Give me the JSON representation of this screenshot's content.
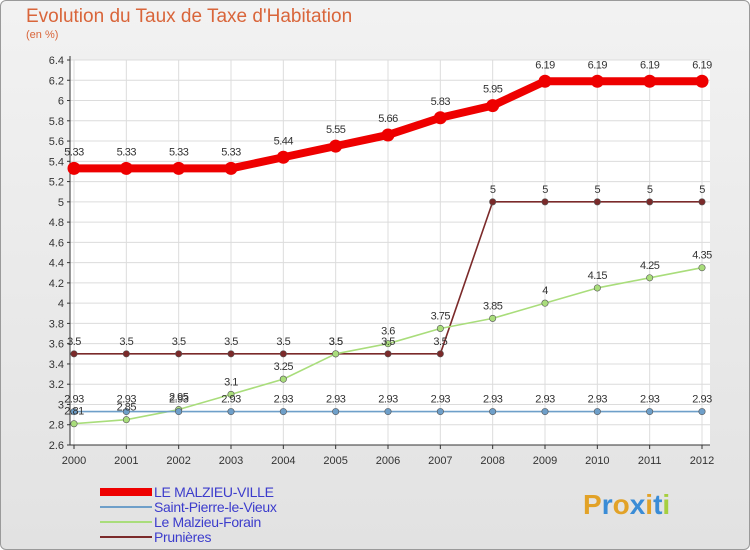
{
  "title": "Evolution du Taux de Taxe d'Habitation",
  "unit_label": "(en %)",
  "logo_text": "Proxiti",
  "logo_colors": [
    "#e2a227",
    "#3a8cd6",
    "#e2a227",
    "#3a8cd6",
    "#e2a227",
    "#3a8cd6",
    "#a6cf3e"
  ],
  "chart_data": {
    "type": "line",
    "x": [
      "2000",
      "2001",
      "2002",
      "2003",
      "2004",
      "2005",
      "2006",
      "2007",
      "2008",
      "2009",
      "2010",
      "2011",
      "2012"
    ],
    "ylim": [
      2.6,
      6.4
    ],
    "yticks": [
      "2.6",
      "2.8",
      "3",
      "3.2",
      "3.4",
      "3.6",
      "3.8",
      "4",
      "4.2",
      "4.4",
      "4.6",
      "4.8",
      "5",
      "5.2",
      "5.4",
      "5.6",
      "5.8",
      "6",
      "6.2",
      "6.4"
    ],
    "grid": true,
    "legend_position": "bottom-left",
    "series": [
      {
        "name": "LE MALZIEU-VILLE",
        "color": "#ee0000",
        "values": [
          5.33,
          5.33,
          5.33,
          5.33,
          5.44,
          5.55,
          5.66,
          5.83,
          5.95,
          6.19,
          6.19,
          6.19,
          6.19
        ],
        "labels": [
          "5.33",
          "5.33",
          "5.33",
          "5.33",
          "5.44",
          "5.55",
          "5.66",
          "5.83",
          "5.95",
          "6.19",
          "6.19",
          "6.19",
          "6.19"
        ]
      },
      {
        "name": "Saint-Pierre-le-Vieux",
        "color": "#6e9fc9",
        "values": [
          2.93,
          2.93,
          2.93,
          2.93,
          2.93,
          2.93,
          2.93,
          2.93,
          2.93,
          2.93,
          2.93,
          2.93,
          2.93
        ],
        "labels": [
          "2.93",
          "2.93",
          "2.93",
          "2.93",
          "2.93",
          "2.93",
          "2.93",
          "2.93",
          "2.93",
          "2.93",
          "2.93",
          "2.93",
          "2.93"
        ]
      },
      {
        "name": "Le Malzieu-Forain",
        "color": "#a9dd7b",
        "values": [
          2.81,
          2.85,
          2.95,
          3.1,
          3.25,
          3.5,
          3.6,
          3.75,
          3.85,
          4,
          4.15,
          4.25,
          4.35
        ],
        "labels": [
          "2.81",
          "2.85",
          "2.95",
          "3.1",
          "3.25",
          "3.5",
          "3.6",
          "3.75",
          "3.85",
          "4",
          "4.15",
          "4.25",
          "4.35"
        ]
      },
      {
        "name": "Prunières",
        "color": "#7b2a2a",
        "values": [
          3.5,
          3.5,
          3.5,
          3.5,
          3.5,
          3.5,
          3.5,
          3.5,
          5,
          5,
          5,
          5,
          5
        ],
        "labels": [
          "3.5",
          "3.5",
          "3.5",
          "3.5",
          "3.5",
          "3.5",
          "3.5",
          "3.5",
          "5",
          "5",
          "5",
          "5",
          "5"
        ]
      }
    ]
  }
}
